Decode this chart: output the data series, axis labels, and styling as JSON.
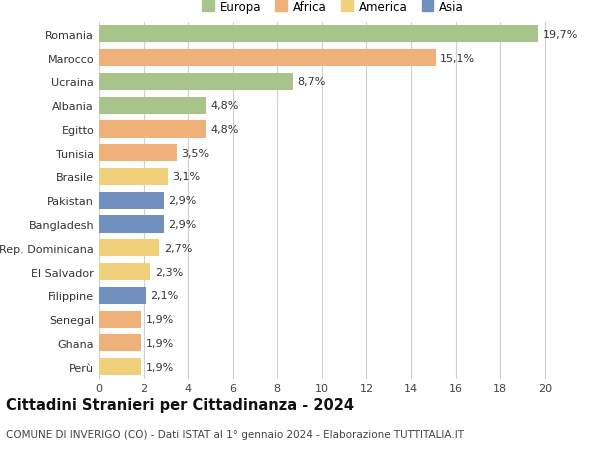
{
  "categories": [
    "Romania",
    "Marocco",
    "Ucraina",
    "Albania",
    "Egitto",
    "Tunisia",
    "Brasile",
    "Pakistan",
    "Bangladesh",
    "Rep. Dominicana",
    "El Salvador",
    "Filippine",
    "Senegal",
    "Ghana",
    "Perù"
  ],
  "values": [
    19.7,
    15.1,
    8.7,
    4.8,
    4.8,
    3.5,
    3.1,
    2.9,
    2.9,
    2.7,
    2.3,
    2.1,
    1.9,
    1.9,
    1.9
  ],
  "labels": [
    "19,7%",
    "15,1%",
    "8,7%",
    "4,8%",
    "4,8%",
    "3,5%",
    "3,1%",
    "2,9%",
    "2,9%",
    "2,7%",
    "2,3%",
    "2,1%",
    "1,9%",
    "1,9%",
    "1,9%"
  ],
  "colors": [
    "#a8c48a",
    "#f0b07a",
    "#a8c48a",
    "#a8c48a",
    "#f0b07a",
    "#f0b07a",
    "#f0d07a",
    "#7090c0",
    "#7090c0",
    "#f0d07a",
    "#f0d07a",
    "#7090c0",
    "#f0b07a",
    "#f0b07a",
    "#f0d07a"
  ],
  "legend": [
    {
      "label": "Europa",
      "color": "#a8c48a"
    },
    {
      "label": "Africa",
      "color": "#f0b07a"
    },
    {
      "label": "America",
      "color": "#f0d07a"
    },
    {
      "label": "Asia",
      "color": "#7090c0"
    }
  ],
  "title": "Cittadini Stranieri per Cittadinanza - 2024",
  "subtitle": "COMUNE DI INVERIGO (CO) - Dati ISTAT al 1° gennaio 2024 - Elaborazione TUTTITALIA.IT",
  "xlim": [
    0,
    21
  ],
  "xticks": [
    0,
    2,
    4,
    6,
    8,
    10,
    12,
    14,
    16,
    18,
    20
  ],
  "background_color": "#ffffff",
  "grid_color": "#d0d0d0",
  "bar_height": 0.72,
  "label_fontsize": 8.0,
  "tick_fontsize": 8.0,
  "title_fontsize": 10.5,
  "subtitle_fontsize": 7.5
}
